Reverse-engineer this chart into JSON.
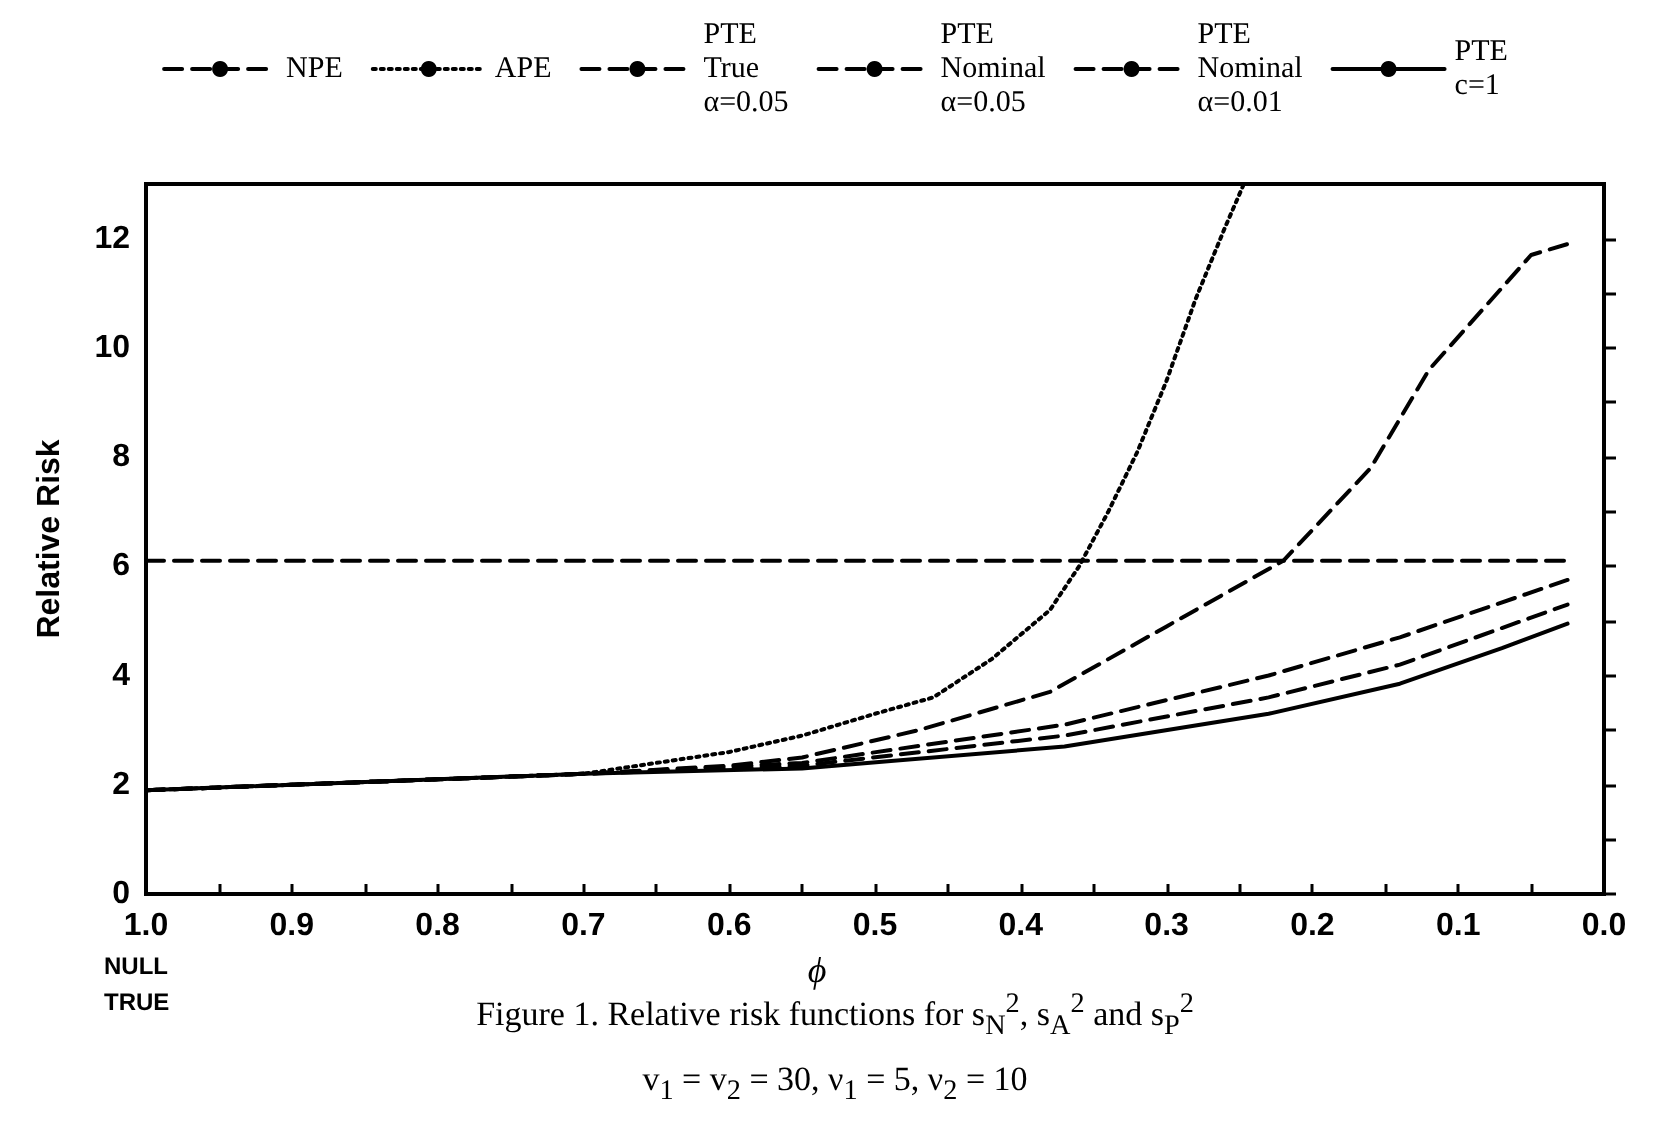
{
  "chart_data": {
    "type": "line",
    "xlabel": "ϕ",
    "ylabel": "Relative Risk",
    "annotations": [
      "NULL\nTRUE",
      "Figure 1.   Relative risk functions for s$_{N}$$^{2}$, s$_{A}$$^{2}$ and s$_{P}$$^{2}$",
      "v$_{1}$ = v$_{2}$ = 30,  ν$_{1}$ = 5,  ν$_{2}$ = 10"
    ],
    "xlim": [
      1.0,
      0.0
    ],
    "xticks": [
      {
        "value": 1.0,
        "label": "1.0"
      },
      {
        "value": 0.95,
        "label": null
      },
      {
        "value": 0.9,
        "label": "0.9"
      },
      {
        "value": 0.85,
        "label": null
      },
      {
        "value": 0.8,
        "label": "0.8"
      },
      {
        "value": 0.75,
        "label": null
      },
      {
        "value": 0.7,
        "label": "0.7"
      },
      {
        "value": 0.65,
        "label": null
      },
      {
        "value": 0.6,
        "label": "0.6"
      },
      {
        "value": 0.55,
        "label": null
      },
      {
        "value": 0.5,
        "label": "0.5"
      },
      {
        "value": 0.45,
        "label": null
      },
      {
        "value": 0.4,
        "label": "0.4"
      },
      {
        "value": 0.35,
        "label": null
      },
      {
        "value": 0.3,
        "label": "0.3"
      },
      {
        "value": 0.25,
        "label": null
      },
      {
        "value": 0.2,
        "label": "0.2"
      },
      {
        "value": 0.15,
        "label": null
      },
      {
        "value": 0.1,
        "label": "0.1"
      },
      {
        "value": 0.05,
        "label": null
      },
      {
        "value": 0.0,
        "label": "0.0"
      }
    ],
    "ylim": [
      0,
      13
    ],
    "yticks": [
      0,
      {
        "value": 1,
        "label": null
      },
      2,
      {
        "value": 3,
        "label": null
      },
      4,
      {
        "value": 5,
        "label": null
      },
      6,
      {
        "value": 7,
        "label": null
      },
      8,
      {
        "value": 9,
        "label": null
      },
      10,
      {
        "value": 11,
        "label": null
      },
      12
    ],
    "grid": false,
    "legend": "top",
    "marker": "none",
    "series": [
      {
        "name": "NPE",
        "color": "#000000",
        "line_style": "dashed",
        "x": [
          1.0,
          0.025
        ],
        "values": [
          6.1,
          6.1
        ]
      },
      {
        "name": "APE",
        "color": "#000000",
        "line_style": "dotted",
        "x": [
          1.0,
          0.9,
          0.8,
          0.7,
          0.65,
          0.6,
          0.55,
          0.5,
          0.46,
          0.42,
          0.38,
          0.36,
          0.34,
          0.32,
          0.3,
          0.28,
          0.26,
          0.247
        ],
        "values": [
          1.9,
          2.0,
          2.1,
          2.2,
          2.4,
          2.6,
          2.9,
          3.3,
          3.6,
          4.3,
          5.2,
          6.0,
          7.0,
          8.1,
          9.4,
          10.9,
          12.2,
          13.0
        ]
      },
      {
        "name": "PTE\nTrue\nα=0.05",
        "color": "#000000",
        "line_style": "dashed",
        "x": [
          1.0,
          0.9,
          0.8,
          0.7,
          0.6,
          0.55,
          0.47,
          0.38,
          0.3,
          0.22,
          0.16,
          0.12,
          0.07,
          0.05,
          0.025
        ],
        "values": [
          1.9,
          2.0,
          2.1,
          2.2,
          2.35,
          2.5,
          3.0,
          3.7,
          4.9,
          6.1,
          7.8,
          9.6,
          11.1,
          11.7,
          11.9
        ]
      },
      {
        "name": "PTE\nNominal\nα=0.05",
        "color": "#000000",
        "line_style": "dashed",
        "x": [
          1.0,
          0.8,
          0.7,
          0.55,
          0.37,
          0.23,
          0.14,
          0.025
        ],
        "values": [
          1.9,
          2.1,
          2.2,
          2.35,
          2.9,
          3.6,
          4.2,
          5.3
        ]
      },
      {
        "name": "PTE\nNominal\nα=0.01",
        "color": "#000000",
        "line_style": "dashed",
        "x": [
          1.0,
          0.8,
          0.7,
          0.55,
          0.37,
          0.23,
          0.14,
          0.025
        ],
        "values": [
          1.9,
          2.1,
          2.2,
          2.4,
          3.1,
          4.0,
          4.7,
          5.75
        ]
      },
      {
        "name": "PTE\nc=1",
        "color": "#000000",
        "line_style": "solid",
        "x": [
          1.0,
          0.8,
          0.7,
          0.55,
          0.37,
          0.23,
          0.14,
          0.07,
          0.025
        ],
        "values": [
          1.9,
          2.1,
          2.2,
          2.3,
          2.7,
          3.3,
          3.85,
          4.5,
          4.95
        ]
      }
    ]
  }
}
